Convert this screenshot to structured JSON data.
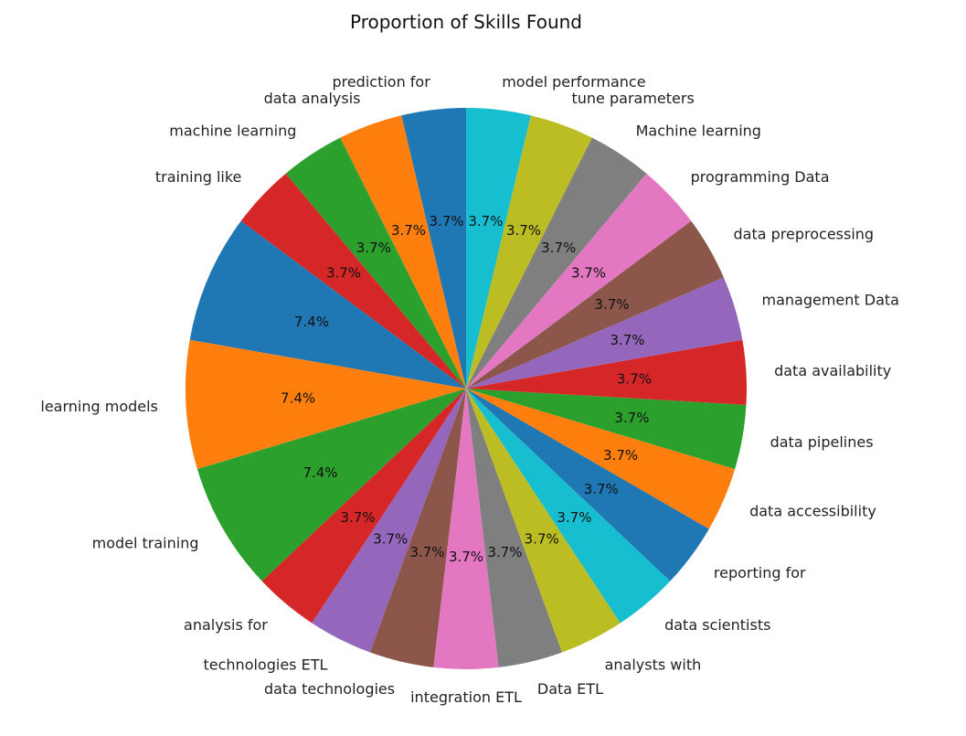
{
  "chart_data": {
    "type": "pie",
    "title": "Proportion of Skills Found",
    "start_angle_deg": 90,
    "direction": "counterclockwise",
    "slices": [
      {
        "label": "prediction for",
        "value": 1,
        "pct": "3.7%",
        "color": "#1f77b4"
      },
      {
        "label": "data analysis",
        "value": 1,
        "pct": "3.7%",
        "color": "#ff7f0e"
      },
      {
        "label": "machine learning",
        "value": 1,
        "pct": "3.7%",
        "color": "#2ca02c"
      },
      {
        "label": "training like",
        "value": 1,
        "pct": "3.7%",
        "color": "#d62728"
      },
      {
        "label": "",
        "value": 2,
        "pct": "7.4%",
        "color": "#1f77b4"
      },
      {
        "label": "learning models",
        "value": 2,
        "pct": "7.4%",
        "color": "#ff7f0e"
      },
      {
        "label": "model training",
        "value": 2,
        "pct": "7.4%",
        "color": "#2ca02c"
      },
      {
        "label": "analysis for",
        "value": 1,
        "pct": "3.7%",
        "color": "#d62728"
      },
      {
        "label": "technologies ETL",
        "value": 1,
        "pct": "3.7%",
        "color": "#9467bd"
      },
      {
        "label": "data technologies",
        "value": 1,
        "pct": "3.7%",
        "color": "#8c564b"
      },
      {
        "label": "integration ETL",
        "value": 1,
        "pct": "3.7%",
        "color": "#e377c2"
      },
      {
        "label": "Data ETL",
        "value": 1,
        "pct": "3.7%",
        "color": "#7f7f7f"
      },
      {
        "label": "analysts with",
        "value": 1,
        "pct": "3.7%",
        "color": "#bcbd22"
      },
      {
        "label": "data scientists",
        "value": 1,
        "pct": "3.7%",
        "color": "#17becf"
      },
      {
        "label": "reporting for",
        "value": 1,
        "pct": "3.7%",
        "color": "#1f77b4"
      },
      {
        "label": "data accessibility",
        "value": 1,
        "pct": "3.7%",
        "color": "#ff7f0e"
      },
      {
        "label": "data pipelines",
        "value": 1,
        "pct": "3.7%",
        "color": "#2ca02c"
      },
      {
        "label": "data availability",
        "value": 1,
        "pct": "3.7%",
        "color": "#d62728"
      },
      {
        "label": "management Data",
        "value": 1,
        "pct": "3.7%",
        "color": "#9467bd"
      },
      {
        "label": "data preprocessing",
        "value": 1,
        "pct": "3.7%",
        "color": "#8c564b"
      },
      {
        "label": "programming Data",
        "value": 1,
        "pct": "3.7%",
        "color": "#e377c2"
      },
      {
        "label": "Machine learning",
        "value": 1,
        "pct": "3.7%",
        "color": "#7f7f7f"
      },
      {
        "label": "tune parameters",
        "value": 1,
        "pct": "3.7%",
        "color": "#bcbd22"
      },
      {
        "label": "model performance",
        "value": 1,
        "pct": "3.7%",
        "color": "#17becf"
      }
    ]
  }
}
